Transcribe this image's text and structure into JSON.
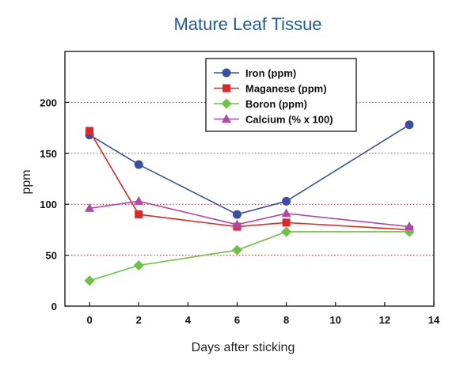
{
  "chart_data": {
    "type": "line",
    "title": "Mature Leaf Tissue",
    "xlabel": "Days after sticking",
    "ylabel": "ppm",
    "xlim": [
      -1,
      14
    ],
    "ylim": [
      0,
      250
    ],
    "xticks": [
      "0",
      "2",
      "4",
      "6",
      "8",
      "10",
      "12",
      "14"
    ],
    "yticks": [
      "0",
      "50",
      "100",
      "150",
      "200"
    ],
    "xtick_values": [
      0,
      2,
      4,
      6,
      8,
      10,
      12,
      14
    ],
    "ytick_values": [
      0,
      50,
      100,
      150,
      200
    ],
    "grid": "horizontal dotted",
    "legend_position": "top-right",
    "series": [
      {
        "name": "Iron (ppm)",
        "color": "#3a4fa3",
        "marker": "circle",
        "x": [
          0,
          2,
          6,
          8,
          13
        ],
        "y": [
          168,
          139,
          90,
          103,
          178
        ]
      },
      {
        "name": "Maganese (ppm)",
        "color": "#e02626",
        "marker": "square",
        "x": [
          0,
          2,
          6,
          8,
          13
        ],
        "y": [
          172,
          90,
          78,
          82,
          75
        ]
      },
      {
        "name": "Boron (ppm)",
        "color": "#6cc242",
        "marker": "diamond",
        "x": [
          0,
          2,
          6,
          8,
          13
        ],
        "y": [
          25,
          40,
          55,
          73,
          73
        ]
      },
      {
        "name": "Calcium (% x 100)",
        "color": "#b249a8",
        "marker": "triangle",
        "x": [
          0,
          2,
          6,
          8,
          13
        ],
        "y": [
          96,
          103,
          80,
          91,
          78
        ]
      }
    ]
  }
}
